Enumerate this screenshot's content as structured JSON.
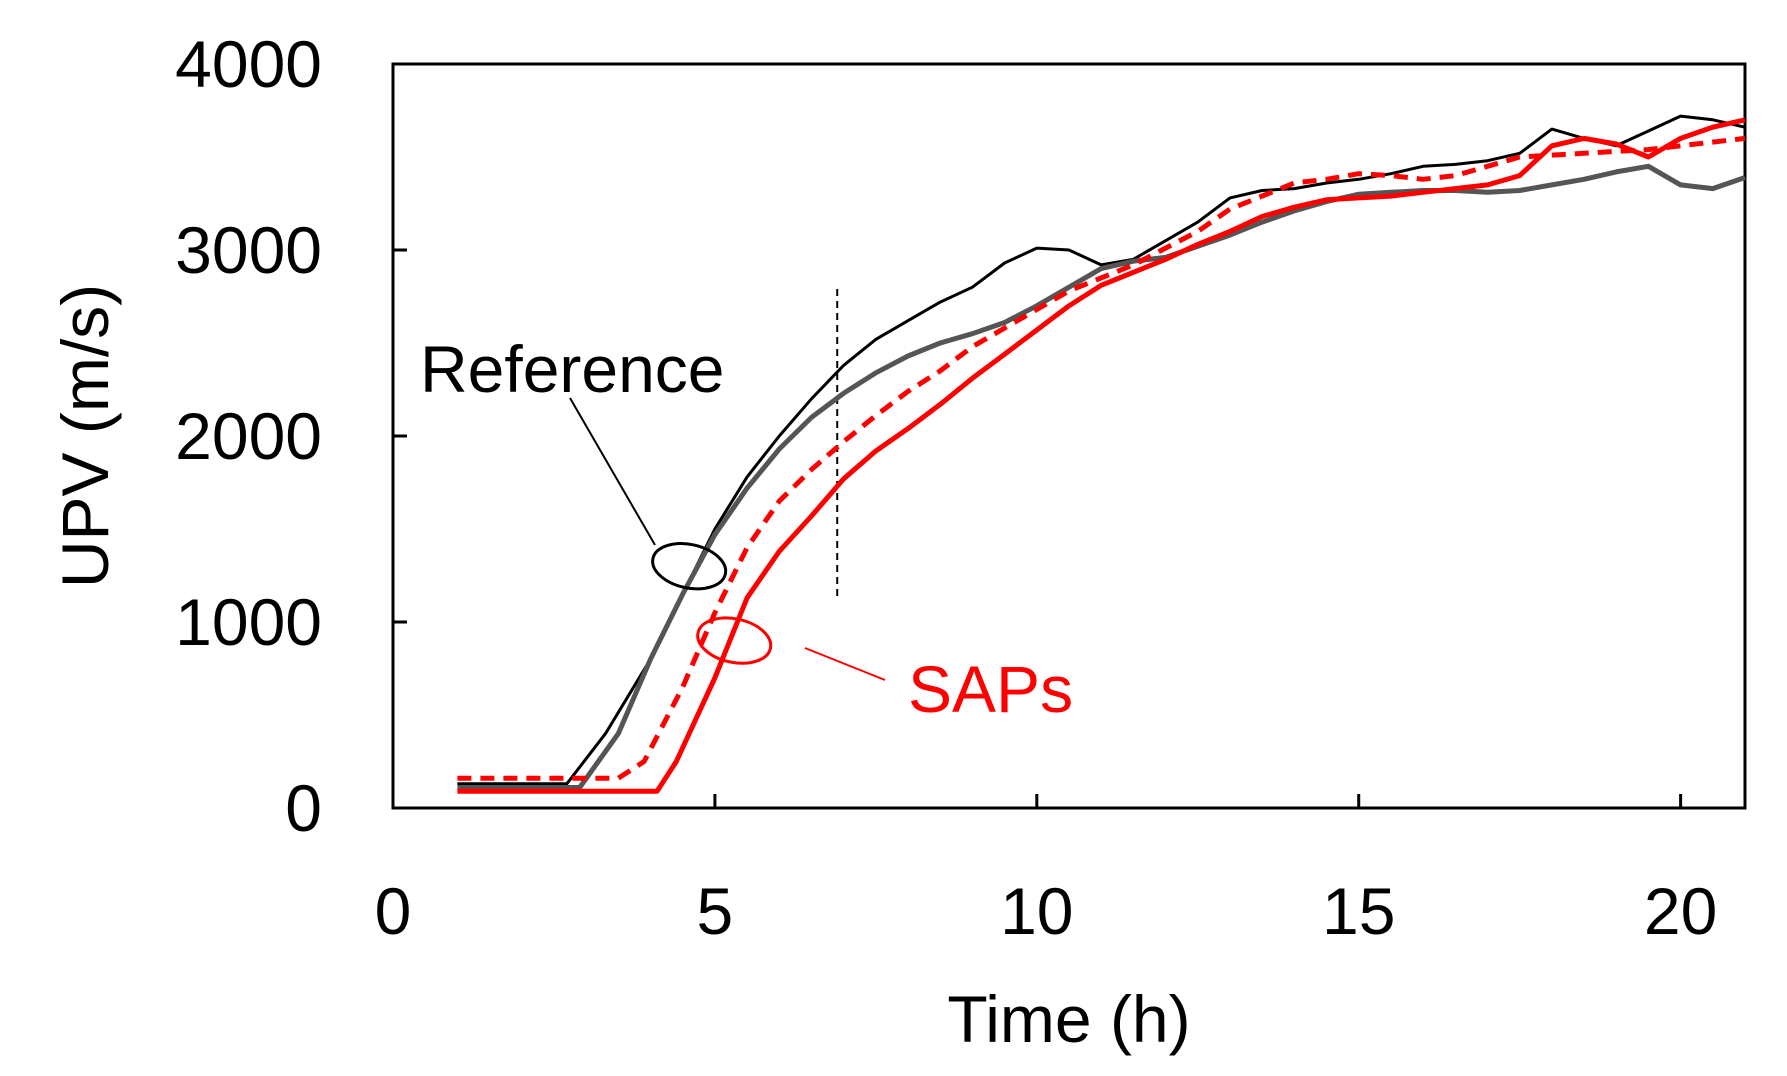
{
  "chart_data": {
    "type": "line",
    "title": "",
    "xlabel": "Time (h)",
    "ylabel": "UPV (m/s)",
    "xlim": [
      0,
      21
    ],
    "ylim": [
      0,
      4000
    ],
    "xticks": [
      0,
      5,
      10,
      15,
      20
    ],
    "yticks": [
      0,
      1000,
      2000,
      3000,
      4000
    ],
    "xtick_labels": [
      "0",
      "5",
      "10",
      "15",
      "20"
    ],
    "ytick_labels": [
      "0",
      "1000",
      "2000",
      "3000",
      "4000"
    ],
    "grid": false,
    "vline": {
      "x": 6.9,
      "y_range": [
        1130,
        2790
      ],
      "style": "dashed",
      "color": "#000000"
    },
    "series": [
      {
        "name": "Reference 1",
        "group": "Reference",
        "color": "#000000",
        "dash": "solid",
        "width": 3,
        "x": [
          1.0,
          2.7,
          3.3,
          4.0,
          4.5,
          5.0,
          5.5,
          6.0,
          6.5,
          7.0,
          7.5,
          8.0,
          8.5,
          9.0,
          9.5,
          10.0,
          10.5,
          11.0,
          11.5,
          12.0,
          12.5,
          13.0,
          13.5,
          14.0,
          14.5,
          15.0,
          15.5,
          16.0,
          16.5,
          17.0,
          17.5,
          18.0,
          18.5,
          19.0,
          19.5,
          20.0,
          20.5,
          21.0
        ],
        "y": [
          130,
          130,
          400,
          800,
          1150,
          1500,
          1780,
          2000,
          2200,
          2380,
          2520,
          2620,
          2720,
          2800,
          2930,
          3010,
          3000,
          2920,
          2950,
          3050,
          3150,
          3280,
          3320,
          3330,
          3360,
          3380,
          3410,
          3450,
          3460,
          3480,
          3520,
          3650,
          3600,
          3560,
          3640,
          3720,
          3700,
          3660
        ]
      },
      {
        "name": "Reference 2",
        "group": "Reference",
        "color": "#555555",
        "dash": "solid",
        "width": 5,
        "x": [
          1.0,
          2.9,
          3.5,
          4.0,
          4.5,
          5.0,
          5.5,
          6.0,
          6.5,
          7.0,
          7.5,
          8.0,
          8.5,
          9.0,
          9.5,
          10.0,
          10.5,
          11.0,
          11.5,
          12.0,
          12.5,
          13.0,
          13.5,
          14.0,
          14.5,
          15.0,
          15.5,
          16.0,
          16.5,
          17.0,
          17.5,
          18.0,
          18.5,
          19.0,
          19.5,
          20.0,
          20.5,
          21.0
        ],
        "y": [
          110,
          110,
          400,
          800,
          1150,
          1470,
          1720,
          1930,
          2100,
          2230,
          2340,
          2430,
          2500,
          2550,
          2610,
          2700,
          2800,
          2900,
          2940,
          2960,
          3020,
          3080,
          3150,
          3210,
          3260,
          3300,
          3310,
          3320,
          3320,
          3310,
          3320,
          3350,
          3380,
          3420,
          3450,
          3350,
          3330,
          3390
        ]
      },
      {
        "name": "SAPs 1",
        "group": "SAPs",
        "color": "#ff0000",
        "dash": "dashed",
        "width": 5,
        "x": [
          1.0,
          3.5,
          3.9,
          4.5,
          5.0,
          5.5,
          6.0,
          6.5,
          7.0,
          7.5,
          8.0,
          8.5,
          9.0,
          9.5,
          10.0,
          10.5,
          11.0,
          11.5,
          12.0,
          12.5,
          13.0,
          13.5,
          14.0,
          14.5,
          15.0,
          15.5,
          16.0,
          16.5,
          17.0,
          17.5,
          18.0,
          18.5,
          19.0,
          19.5,
          20.0,
          20.5,
          21.0
        ],
        "y": [
          160,
          160,
          250,
          650,
          1050,
          1400,
          1650,
          1820,
          1970,
          2110,
          2240,
          2350,
          2480,
          2580,
          2680,
          2780,
          2850,
          2920,
          3010,
          3100,
          3220,
          3290,
          3360,
          3380,
          3410,
          3400,
          3380,
          3400,
          3450,
          3500,
          3510,
          3520,
          3530,
          3540,
          3560,
          3580,
          3600
        ]
      },
      {
        "name": "SAPs 2",
        "group": "SAPs",
        "color": "#ff0000",
        "dash": "solid",
        "width": 5,
        "x": [
          1.0,
          4.1,
          4.4,
          5.0,
          5.5,
          6.0,
          6.5,
          7.0,
          7.5,
          8.0,
          8.5,
          9.0,
          9.5,
          10.0,
          10.5,
          11.0,
          11.5,
          12.0,
          12.5,
          13.0,
          13.5,
          14.0,
          14.5,
          15.0,
          15.5,
          16.0,
          16.5,
          17.0,
          17.5,
          18.0,
          18.5,
          19.0,
          19.5,
          20.0,
          20.5,
          21.0
        ],
        "y": [
          90,
          90,
          250,
          700,
          1130,
          1380,
          1570,
          1770,
          1920,
          2040,
          2170,
          2310,
          2440,
          2570,
          2700,
          2810,
          2880,
          2950,
          3030,
          3100,
          3180,
          3230,
          3270,
          3280,
          3290,
          3310,
          3330,
          3350,
          3400,
          3560,
          3600,
          3570,
          3500,
          3600,
          3660,
          3700
        ]
      }
    ],
    "annotations": [
      {
        "text": "Reference",
        "color": "#000000",
        "ellipse_center": [
          4.6,
          1300
        ],
        "ellipse_rx": 0.5,
        "ellipse_ry": 130
      },
      {
        "text": "SAPs",
        "color": "#ff0000",
        "ellipse_center": [
          5.3,
          900
        ],
        "ellipse_rx": 0.5,
        "ellipse_ry": 130
      }
    ]
  }
}
